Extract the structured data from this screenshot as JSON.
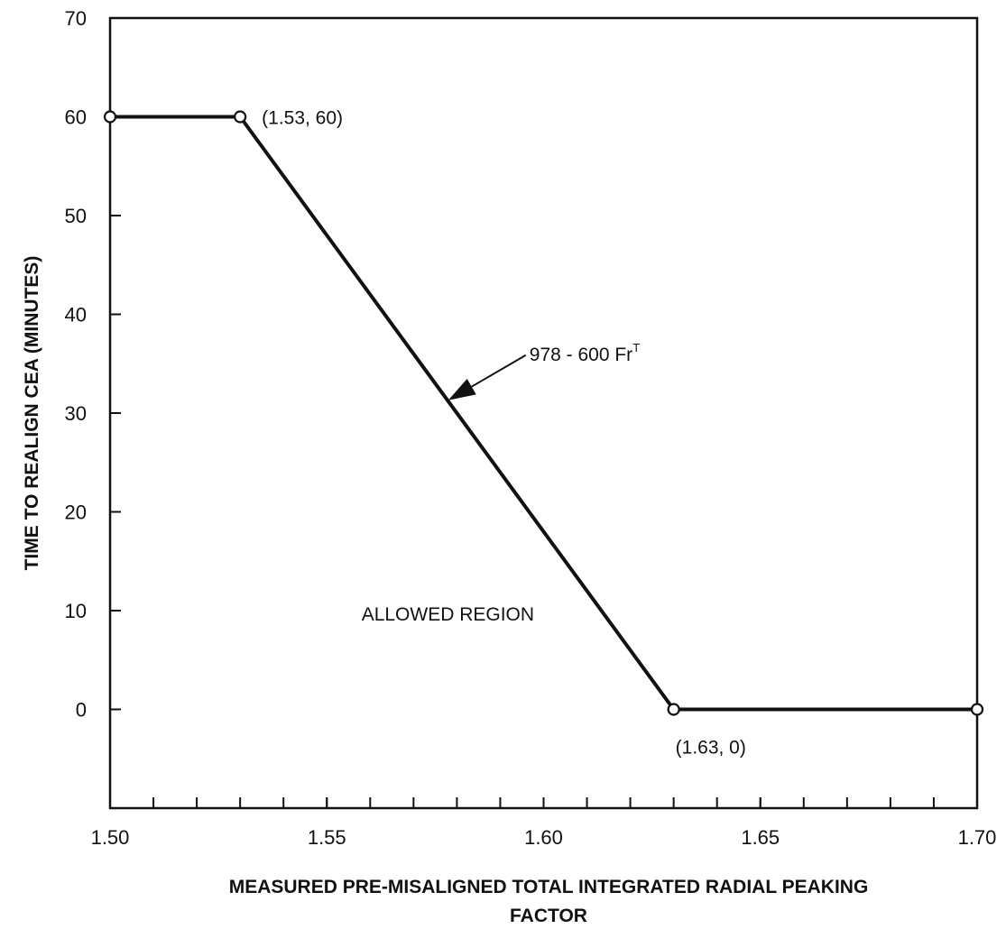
{
  "chart_data": {
    "type": "line",
    "title": "",
    "xlabel_lines": [
      "MEASURED PRE-MISALIGNED TOTAL INTEGRATED RADIAL PEAKING",
      "FACTOR"
    ],
    "ylabel": "TIME TO REALIGN CEA (MINUTES)",
    "xlim": [
      1.5,
      1.7
    ],
    "ylim": [
      -10,
      70
    ],
    "x_ticks": [
      {
        "value": 1.5,
        "label": "1.50"
      },
      {
        "value": 1.55,
        "label": "1.55"
      },
      {
        "value": 1.6,
        "label": "1.60"
      },
      {
        "value": 1.65,
        "label": "1.65"
      },
      {
        "value": 1.7,
        "label": "1.70"
      }
    ],
    "x_minor_step": 0.01,
    "y_ticks": [
      {
        "value": 70,
        "label": "70"
      },
      {
        "value": 60,
        "label": "60"
      },
      {
        "value": 50,
        "label": "50"
      },
      {
        "value": 40,
        "label": "40"
      },
      {
        "value": 30,
        "label": "30"
      },
      {
        "value": 20,
        "label": "20"
      },
      {
        "value": 10,
        "label": "10"
      },
      {
        "value": 0,
        "label": "0"
      }
    ],
    "y_minor_ticks": [
      -10
    ],
    "grid": false,
    "series": [
      {
        "x": [
          1.5,
          1.53,
          1.63,
          1.7
        ],
        "y": [
          60,
          60,
          0,
          0
        ],
        "color": "#111111",
        "marker": "open-circle"
      }
    ],
    "annotations": {
      "point_1": {
        "text": "(1.53, 60)",
        "x": 1.53,
        "y": 60
      },
      "point_2": {
        "text": "(1.63, 0)",
        "x": 1.63,
        "y": 0
      },
      "equation": {
        "base": "978 - 600 Fr",
        "sup": "T",
        "arrow_to_x": 1.578,
        "arrow_to_y": 31.3
      },
      "region": {
        "text": "ALLOWED REGION",
        "x": 1.558,
        "y": 9
      }
    }
  }
}
